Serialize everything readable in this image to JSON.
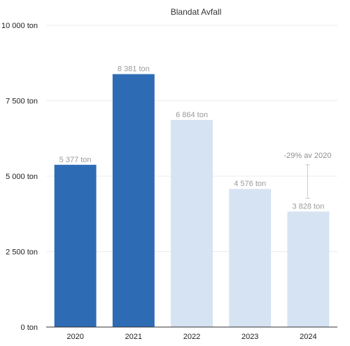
{
  "chart_data": {
    "type": "bar",
    "title": "Blandat Avfall",
    "xlabel": "",
    "ylabel": "",
    "categories": [
      "2020",
      "2021",
      "2022",
      "2023",
      "2024"
    ],
    "values": [
      5377,
      8381,
      6864,
      4576,
      3828
    ],
    "value_labels": [
      "5 377 ton",
      "8 381 ton",
      "6 864 ton",
      "4 576 ton",
      "3 828 ton"
    ],
    "bar_status": [
      "actual",
      "actual",
      "projected",
      "projected",
      "projected"
    ],
    "ylim": [
      0,
      10000
    ],
    "yticks": [
      0,
      2500,
      5000,
      7500,
      10000
    ],
    "ytick_labels": [
      "0 ton",
      "2 500 ton",
      "5 000 ton",
      "7 500 ton",
      "10 000 ton"
    ],
    "grid": true,
    "legend": "none",
    "colors": {
      "actual": "#2e6bb5",
      "projected": "#d6e3f2"
    },
    "annotation": {
      "text": "-29% av 2020",
      "category": "2024",
      "from_value": 5377,
      "to_value": 3828
    }
  }
}
